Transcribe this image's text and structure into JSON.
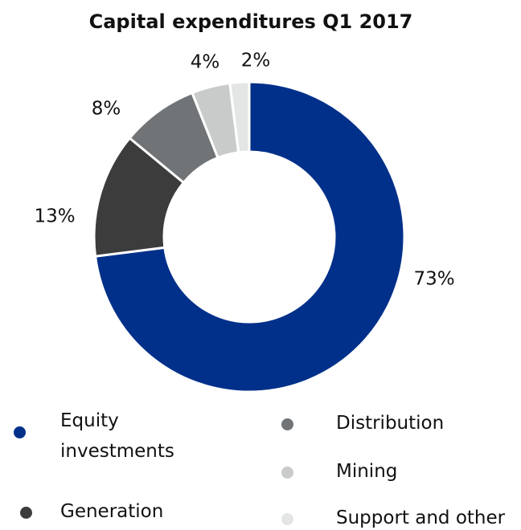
{
  "chart_data": {
    "type": "donut",
    "title": "Capital expenditures Q1 2017",
    "series": [
      {
        "name": "Equity investments",
        "color": "#00308a",
        "values": [
          73
        ],
        "value_labels": [
          "73%"
        ]
      },
      {
        "name": "Generation",
        "color": "#3c3c3c",
        "values": [
          13
        ],
        "value_labels": [
          "13%"
        ]
      },
      {
        "name": "Distribution",
        "color": "#717477",
        "values": [
          8
        ],
        "value_labels": [
          "8%"
        ]
      },
      {
        "name": "Mining",
        "color": "#c9cbcb",
        "values": [
          4
        ],
        "value_labels": [
          "4%"
        ]
      },
      {
        "name": "Support and other",
        "color": "#e4e6e6",
        "values": [
          2
        ],
        "value_labels": [
          "2%"
        ]
      }
    ]
  }
}
